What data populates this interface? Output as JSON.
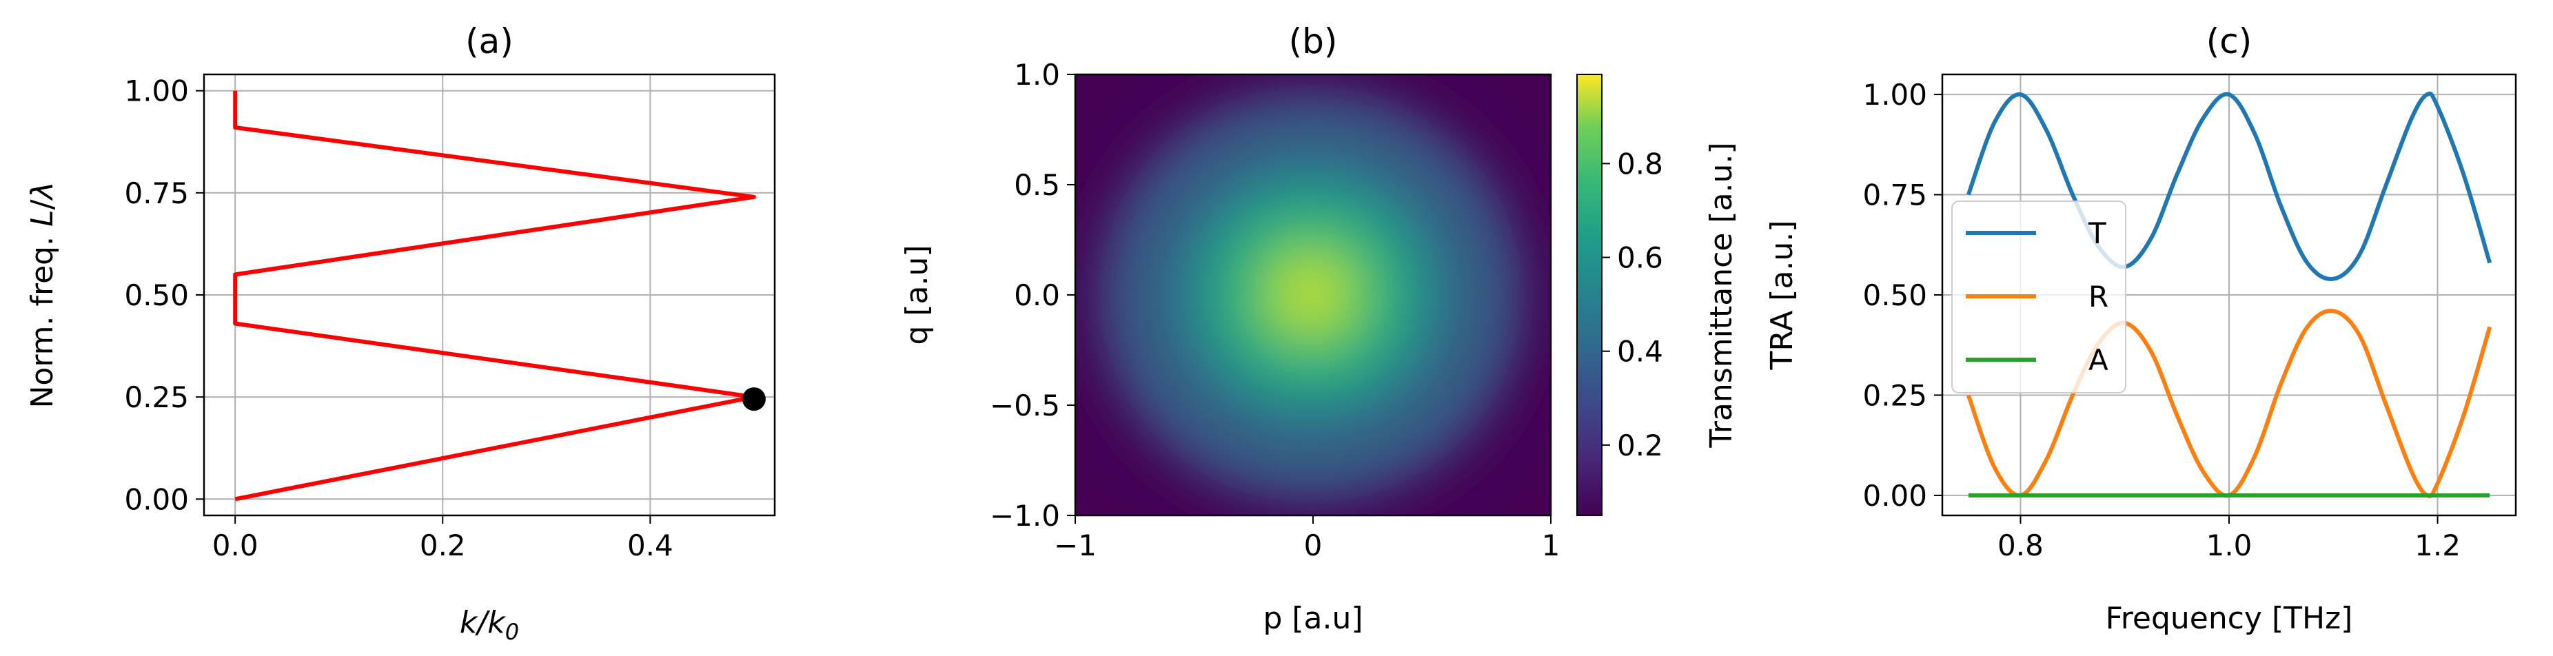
{
  "figure": {
    "panels": [
      {
        "title": "(a)",
        "xlabel": "k/k0",
        "ylabel": "Norm. freq. L/λ"
      },
      {
        "title": "(b)",
        "xlabel": "p [a.u]",
        "ylabel": "q [a.u]",
        "colorbar_label": "Transmittance [a.u.]"
      },
      {
        "title": "(c)",
        "xlabel": "Frequency [THz]",
        "ylabel": "TRA [a.u.]"
      }
    ]
  },
  "chart_data": [
    {
      "type": "line",
      "title": "(a)",
      "xlabel": "k/k0",
      "ylabel": "Norm. freq. L/λ",
      "xlim": [
        -0.03,
        0.52
      ],
      "ylim": [
        -0.04,
        1.04
      ],
      "xticks": [
        0.0,
        0.2,
        0.4
      ],
      "xtick_labels": [
        "0.0",
        "0.2",
        "0.4"
      ],
      "yticks": [
        0.0,
        0.25,
        0.5,
        0.75,
        1.0
      ],
      "ytick_labels": [
        "0.00",
        "0.25",
        "0.50",
        "0.75",
        "1.00"
      ],
      "grid": true,
      "series": [
        {
          "color": "#ff0000",
          "points": [
            [
              0.0,
              0.0
            ],
            [
              0.5,
              0.25
            ],
            [
              0.0,
              0.43
            ],
            [
              0.0,
              0.55
            ],
            [
              0.5,
              0.74
            ],
            [
              0.0,
              0.91
            ],
            [
              0.0,
              1.0
            ]
          ]
        }
      ],
      "markers": [
        {
          "x": 0.5,
          "y": 0.245,
          "color": "#000000"
        }
      ]
    },
    {
      "type": "heatmap",
      "title": "(b)",
      "xlabel": "p [a.u]",
      "ylabel": "q [a.u]",
      "xlim": [
        -1,
        1
      ],
      "ylim": [
        -1,
        1
      ],
      "xticks": [
        -1,
        0,
        1
      ],
      "xtick_labels": [
        "−1",
        "0",
        "1"
      ],
      "yticks": [
        -1.0,
        -0.5,
        0.0,
        0.5,
        1.0
      ],
      "ytick_labels": [
        "−1.0",
        "−0.5",
        "0.0",
        "0.5",
        "1.0"
      ],
      "colormap": "viridis",
      "colorbar": {
        "label": "Transmittance [a.u.]",
        "range": [
          0.05,
          0.99
        ],
        "ticks": [
          0.2,
          0.4,
          0.6,
          0.8
        ],
        "tick_labels": [
          "0.2",
          "0.4",
          "0.6",
          "0.8"
        ]
      },
      "peak": {
        "p": 0.0,
        "q": 0.0,
        "value": 0.99
      }
    },
    {
      "type": "line",
      "title": "(c)",
      "xlabel": "Frequency [THz]",
      "ylabel": "TRA [a.u.]",
      "xlim": [
        0.725,
        1.275
      ],
      "ylim": [
        -0.05,
        1.05
      ],
      "xticks": [
        0.8,
        1.0,
        1.2
      ],
      "xtick_labels": [
        "0.8",
        "1.0",
        "1.2"
      ],
      "yticks": [
        0.0,
        0.25,
        0.5,
        0.75,
        1.0
      ],
      "ytick_labels": [
        "0.00",
        "0.25",
        "0.50",
        "0.75",
        "1.00"
      ],
      "grid": true,
      "legend": {
        "placement": "center-left"
      },
      "series": [
        {
          "name": "T",
          "color": "#1f77b4",
          "points": [
            [
              0.75,
              0.75
            ],
            [
              0.775,
              0.93
            ],
            [
              0.8,
              1.0
            ],
            [
              0.825,
              0.91
            ],
            [
              0.85,
              0.75
            ],
            [
              0.875,
              0.62
            ],
            [
              0.9,
              0.57
            ],
            [
              0.925,
              0.64
            ],
            [
              0.95,
              0.8
            ],
            [
              0.975,
              0.94
            ],
            [
              1.0,
              1.0
            ],
            [
              1.025,
              0.9
            ],
            [
              1.05,
              0.72
            ],
            [
              1.075,
              0.58
            ],
            [
              1.1,
              0.54
            ],
            [
              1.125,
              0.6
            ],
            [
              1.15,
              0.77
            ],
            [
              1.175,
              0.94
            ],
            [
              1.19,
              1.0
            ],
            [
              1.2,
              0.97
            ],
            [
              1.225,
              0.8
            ],
            [
              1.25,
              0.58
            ]
          ]
        },
        {
          "name": "R",
          "color": "#ff7f0e",
          "points": [
            [
              0.75,
              0.25
            ],
            [
              0.775,
              0.07
            ],
            [
              0.8,
              0.0
            ],
            [
              0.825,
              0.09
            ],
            [
              0.85,
              0.25
            ],
            [
              0.875,
              0.38
            ],
            [
              0.9,
              0.43
            ],
            [
              0.925,
              0.36
            ],
            [
              0.95,
              0.2
            ],
            [
              0.975,
              0.06
            ],
            [
              1.0,
              0.0
            ],
            [
              1.025,
              0.1
            ],
            [
              1.05,
              0.28
            ],
            [
              1.075,
              0.42
            ],
            [
              1.1,
              0.46
            ],
            [
              1.125,
              0.4
            ],
            [
              1.15,
              0.23
            ],
            [
              1.175,
              0.06
            ],
            [
              1.19,
              0.0
            ],
            [
              1.2,
              0.03
            ],
            [
              1.225,
              0.2
            ],
            [
              1.25,
              0.42
            ]
          ]
        },
        {
          "name": "A",
          "color": "#2ca02c",
          "points": [
            [
              0.75,
              0.0
            ],
            [
              1.25,
              0.0
            ]
          ]
        }
      ]
    }
  ]
}
